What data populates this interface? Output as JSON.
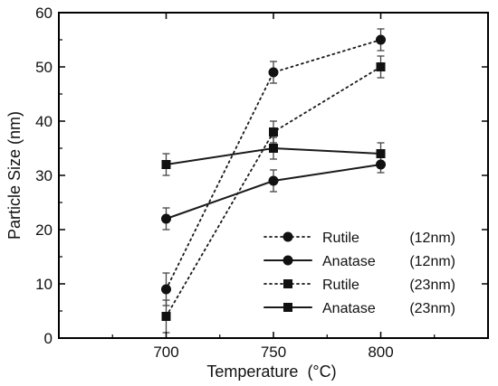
{
  "chart_data": {
    "type": "line",
    "title": "",
    "xlabel": "Temperature",
    "xlabel_unit": "(°C)",
    "ylabel": "Particle Size (nm)",
    "x": [
      700,
      750,
      800
    ],
    "xlim": [
      650,
      850
    ],
    "ylim": [
      0,
      60
    ],
    "x_ticks": [
      700,
      750,
      800
    ],
    "y_ticks": [
      0,
      10,
      20,
      30,
      40,
      50,
      60
    ],
    "grid": false,
    "legend_position": "bottom-right",
    "series": [
      {
        "name": "Rutile",
        "legend_size": "(12nm)",
        "marker": "circle",
        "line_style": "dotted",
        "values": [
          9,
          49,
          55
        ],
        "errors": [
          3,
          2,
          2
        ]
      },
      {
        "name": "Anatase",
        "legend_size": "(12nm)",
        "marker": "circle",
        "line_style": "solid",
        "values": [
          22,
          29,
          32
        ],
        "errors": [
          2,
          2,
          1.5
        ]
      },
      {
        "name": "Rutile",
        "legend_size": "(23nm)",
        "marker": "square",
        "line_style": "dotted",
        "values": [
          4,
          38,
          50
        ],
        "errors": [
          3,
          2,
          2
        ]
      },
      {
        "name": "Anatase",
        "legend_size": "(23nm)",
        "marker": "square",
        "line_style": "solid",
        "values": [
          32,
          35,
          34
        ],
        "errors": [
          2,
          2,
          2
        ]
      }
    ],
    "colors": {
      "line": "#1a1a1a",
      "marker": "#111111",
      "axis": "#000000"
    }
  }
}
